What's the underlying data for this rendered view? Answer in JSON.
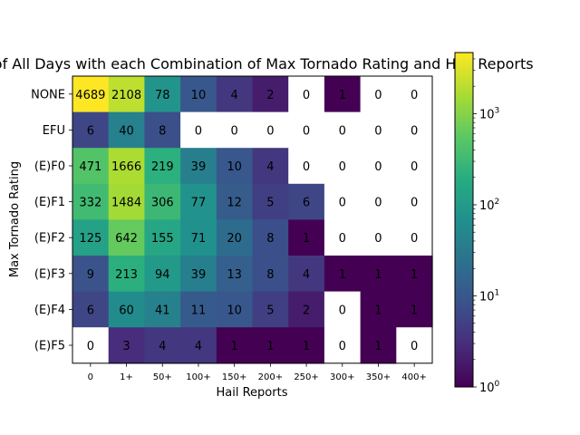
{
  "chart_data": {
    "type": "heatmap",
    "title": "Number of All Days with each Combination of Max Tornado Rating and Hail Reports",
    "xlabel": "Hail Reports",
    "ylabel": "Max Tornado Rating",
    "x_categories": [
      "0",
      "1+",
      "50+",
      "100+",
      "150+",
      "200+",
      "250+",
      "300+",
      "350+",
      "400+"
    ],
    "y_categories": [
      "NONE",
      "EFU",
      "(E)F0",
      "(E)F1",
      "(E)F2",
      "(E)F3",
      "(E)F4",
      "(E)F5"
    ],
    "values": [
      [
        4689,
        2108,
        78,
        10,
        4,
        2,
        0,
        1,
        0,
        0
      ],
      [
        6,
        40,
        8,
        0,
        0,
        0,
        0,
        0,
        0,
        0
      ],
      [
        471,
        1666,
        219,
        39,
        10,
        4,
        0,
        0,
        0,
        0
      ],
      [
        332,
        1484,
        306,
        77,
        12,
        5,
        6,
        0,
        0,
        0
      ],
      [
        125,
        642,
        155,
        71,
        20,
        8,
        1,
        0,
        0,
        0
      ],
      [
        9,
        213,
        94,
        39,
        13,
        8,
        4,
        1,
        1,
        1
      ],
      [
        6,
        60,
        41,
        11,
        10,
        5,
        2,
        0,
        1,
        1
      ],
      [
        0,
        3,
        4,
        4,
        1,
        1,
        1,
        0,
        1,
        0
      ]
    ],
    "color_scale": "log",
    "colormap": "viridis",
    "zero_color": "#ffffff",
    "colorbar": {
      "range": [
        1,
        4689
      ],
      "ticks": [
        {
          "value": 1,
          "base": "10",
          "exp": "0"
        },
        {
          "value": 10,
          "base": "10",
          "exp": "1"
        },
        {
          "value": 100,
          "base": "10",
          "exp": "2"
        },
        {
          "value": 1000,
          "base": "10",
          "exp": "3"
        }
      ]
    }
  }
}
